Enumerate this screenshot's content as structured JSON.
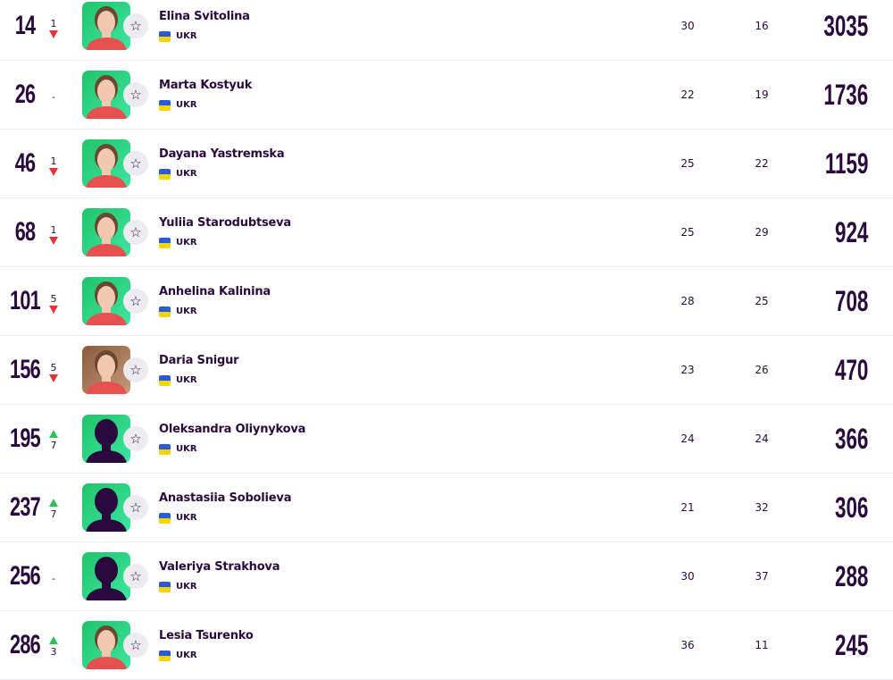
{
  "colors": {
    "text": "#2a0a3e",
    "down": "#e0343a",
    "up": "#2fbf5a",
    "avatar_bg": "#20c46a",
    "flag_blue": "#2a5bd7",
    "flag_yellow": "#f5d400"
  },
  "players": [
    {
      "rank": "14",
      "move_dir": "down",
      "move": "1",
      "name": "Elina Svitolina",
      "country": "UKR",
      "col1": "30",
      "col2": "16",
      "points": "3035",
      "photo": "photo"
    },
    {
      "rank": "26",
      "move_dir": "none",
      "move": "-",
      "name": "Marta Kostyuk",
      "country": "UKR",
      "col1": "22",
      "col2": "19",
      "points": "1736",
      "photo": "photo"
    },
    {
      "rank": "46",
      "move_dir": "down",
      "move": "1",
      "name": "Dayana Yastremska",
      "country": "UKR",
      "col1": "25",
      "col2": "22",
      "points": "1159",
      "photo": "photo"
    },
    {
      "rank": "68",
      "move_dir": "down",
      "move": "1",
      "name": "Yuliia Starodubtseva",
      "country": "UKR",
      "col1": "25",
      "col2": "29",
      "points": "924",
      "photo": "photo"
    },
    {
      "rank": "101",
      "move_dir": "down",
      "move": "5",
      "name": "Anhelina Kalinina",
      "country": "UKR",
      "col1": "28",
      "col2": "25",
      "points": "708",
      "photo": "photo"
    },
    {
      "rank": "156",
      "move_dir": "down",
      "move": "5",
      "name": "Daria Snigur",
      "country": "UKR",
      "col1": "23",
      "col2": "26",
      "points": "470",
      "photo": "photo-brown"
    },
    {
      "rank": "195",
      "move_dir": "up",
      "move": "7",
      "name": "Oleksandra Oliynykova",
      "country": "UKR",
      "col1": "24",
      "col2": "24",
      "points": "366",
      "photo": "silhouette"
    },
    {
      "rank": "237",
      "move_dir": "up",
      "move": "7",
      "name": "Anastasiia Sobolieva",
      "country": "UKR",
      "col1": "21",
      "col2": "32",
      "points": "306",
      "photo": "silhouette"
    },
    {
      "rank": "256",
      "move_dir": "none",
      "move": "-",
      "name": "Valeriya Strakhova",
      "country": "UKR",
      "col1": "30",
      "col2": "37",
      "points": "288",
      "photo": "silhouette"
    },
    {
      "rank": "286",
      "move_dir": "up",
      "move": "3",
      "name": "Lesia Tsurenko",
      "country": "UKR",
      "col1": "36",
      "col2": "11",
      "points": "245",
      "photo": "photo"
    }
  ],
  "icons": {
    "favorite": "star-outline-icon",
    "flag": "ukraine-flag-icon"
  }
}
